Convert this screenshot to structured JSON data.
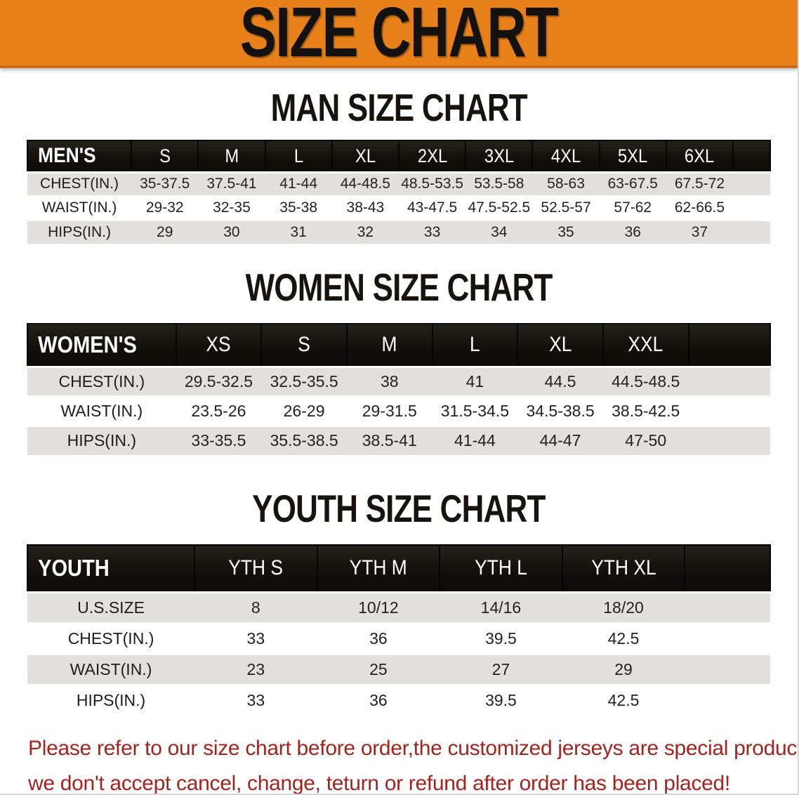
{
  "banner": {
    "title": "SIZE CHART",
    "bg_color": "#E8811A",
    "text_color": "#141210"
  },
  "sections": [
    {
      "heading": "MAN SIZE CHART",
      "table": {
        "header_label": "MEN'S",
        "columns": [
          "S",
          "M",
          "L",
          "XL",
          "2XL",
          "3XL",
          "4XL",
          "5XL",
          "6XL"
        ],
        "rows": [
          {
            "label": "CHEST(IN.)",
            "values": [
              "35-37.5",
              "37.5-41",
              "41-44",
              "44-48.5",
              "48.5-53.5",
              "53.5-58",
              "58-63",
              "63-67.5",
              "67.5-72"
            ]
          },
          {
            "label": "WAIST(IN.)",
            "values": [
              "29-32",
              "32-35",
              "35-38",
              "38-43",
              "43-47.5",
              "47.5-52.5",
              "52.5-57",
              "57-62",
              "62-66.5"
            ]
          },
          {
            "label": "HIPS(IN.)",
            "values": [
              "29",
              "30",
              "31",
              "32",
              "33",
              "34",
              "35",
              "36",
              "37"
            ]
          }
        ]
      }
    },
    {
      "heading": "WOMEN SIZE CHART",
      "table": {
        "header_label": "WOMEN'S",
        "columns": [
          "XS",
          "S",
          "M",
          "L",
          "XL",
          "XXL"
        ],
        "rows": [
          {
            "label": "CHEST(IN.)",
            "values": [
              "29.5-32.5",
              "32.5-35.5",
              "38",
              "41",
              "44.5",
              "44.5-48.5"
            ]
          },
          {
            "label": "WAIST(IN.)",
            "values": [
              "23.5-26",
              "26-29",
              "29-31.5",
              "31.5-34.5",
              "34.5-38.5",
              "38.5-42.5"
            ]
          },
          {
            "label": "HIPS(IN.)",
            "values": [
              "33-35.5",
              "35.5-38.5",
              "38.5-41",
              "41-44",
              "44-47",
              "47-50"
            ]
          }
        ]
      }
    },
    {
      "heading": "YOUTH SIZE CHART",
      "table": {
        "header_label": "YOUTH",
        "columns": [
          "YTH S",
          "YTH M",
          "YTH L",
          "YTH XL"
        ],
        "rows": [
          {
            "label": "U.S.SIZE",
            "values": [
              "8",
              "10/12",
              "14/16",
              "18/20"
            ]
          },
          {
            "label": "CHEST(IN.)",
            "values": [
              "33",
              "36",
              "39.5",
              "42.5"
            ]
          },
          {
            "label": "WAIST(IN.)",
            "values": [
              "23",
              "25",
              "27",
              "29"
            ]
          },
          {
            "label": "HIPS(IN.)",
            "values": [
              "33",
              "36",
              "39.5",
              "42.5"
            ]
          }
        ]
      }
    }
  ],
  "disclaimer": {
    "line1": "Please refer to our size chart before order,the customized jerseys are special products,",
    "line2": "we don't accept cancel, change, teturn or refund after order has been placed!",
    "color": "#A3241E"
  }
}
